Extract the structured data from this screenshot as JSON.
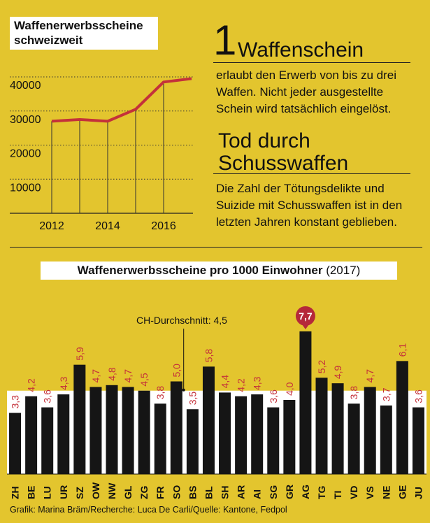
{
  "line_chart_title": "Waffenerwerbsscheine schweizweit",
  "info": {
    "number": "1",
    "heading": "Waffenschein",
    "text": "erlaubt den Erwerb von bis zu drei Waffen. Nicht jeder ausgestellte Schein wird tatsächlich eingelöst.",
    "heading2": "Tod durch Schusswaffen",
    "text2": "Die Zahl der Tötungsdelikte und Suizide mit Schusswaffen ist in den letzten Jahren konstant geblieben."
  },
  "bar_chart_title_bold": "Waffenerwerbsscheine pro 1000 Einwohner",
  "bar_chart_title_rest": " (2017)",
  "average_label": "CH-Durchschnitt: 4,5",
  "credit": "Grafik: Marina Bräm/Recherche: Luca De Carli/Quelle: Kantone, Fedpol",
  "colors": {
    "background": "#e3c52e",
    "line": "#c4313a",
    "bar": "#151515",
    "value_label": "#c4313a",
    "highlight": "#b5283a"
  },
  "chart_data": [
    {
      "type": "line",
      "title": "Waffenerwerbsscheine schweizweit",
      "x": [
        2012,
        2013,
        2014,
        2015,
        2016,
        2017
      ],
      "values": [
        27000,
        27500,
        27000,
        30500,
        38500,
        39500
      ],
      "x_tick_labels": [
        "2012",
        "2014",
        "2016"
      ],
      "y_tick_labels": [
        "10000",
        "20000",
        "30000",
        "40000"
      ],
      "ylim": [
        0,
        43000
      ]
    },
    {
      "type": "bar",
      "title": "Waffenerwerbsscheine pro 1000 Einwohner (2017)",
      "categories": [
        "ZH",
        "BE",
        "LU",
        "UR",
        "SZ",
        "OW",
        "NW",
        "GL",
        "ZG",
        "FR",
        "SO",
        "BS",
        "BL",
        "SH",
        "AR",
        "AI",
        "SG",
        "GR",
        "AG",
        "TG",
        "TI",
        "VD",
        "VS",
        "NE",
        "GE",
        "JU"
      ],
      "values": [
        3.3,
        4.2,
        3.6,
        4.3,
        5.9,
        4.7,
        4.8,
        4.7,
        4.5,
        3.8,
        5.0,
        3.5,
        5.8,
        4.4,
        4.2,
        4.3,
        3.6,
        4.0,
        7.7,
        5.2,
        4.9,
        3.8,
        4.7,
        3.7,
        6.1,
        3.6
      ],
      "labels": [
        "3,3",
        "4,2",
        "3,6",
        "4,3",
        "5,9",
        "4,7",
        "4,8",
        "4,7",
        "4,5",
        "3,8",
        "5,0",
        "3,5",
        "5,8",
        "4,4",
        "4,2",
        "4,3",
        "3,6",
        "4,0",
        "7,7",
        "5,2",
        "4,9",
        "3,8",
        "4,7",
        "3,7",
        "6,1",
        "3,6"
      ],
      "highlight": "AG",
      "average": 4.5,
      "ylim": [
        0,
        8.5
      ]
    }
  ]
}
